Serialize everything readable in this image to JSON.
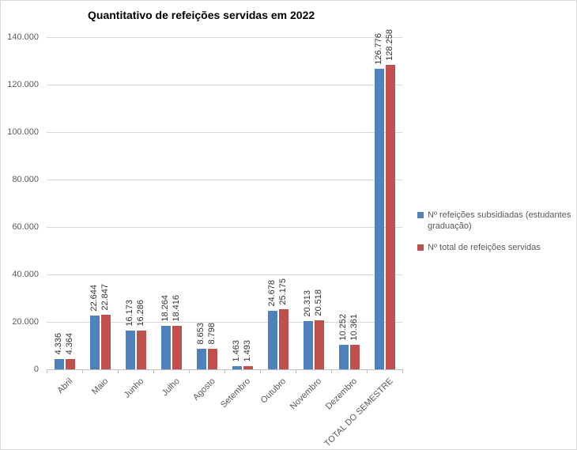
{
  "chart_data": {
    "type": "bar",
    "title": "Quantitativo de refeições servidas em 2022",
    "categories": [
      "Abril",
      "Maio",
      "Junho",
      "Julho",
      "Agosto",
      "Setembro",
      "Outubro",
      "Novembro",
      "Dezembro",
      "TOTAL DO SEMESTRE"
    ],
    "series": [
      {
        "name": "Nº refeições subsidiadas (estudantes graduação)",
        "color": "#4F81BD",
        "values": [
          4336,
          22644,
          16173,
          18264,
          8653,
          1463,
          24678,
          20313,
          10252,
          126776
        ]
      },
      {
        "name": "Nº total de refeições servidas",
        "color": "#C0504D",
        "values": [
          4364,
          22847,
          16286,
          18416,
          8798,
          1493,
          25175,
          20518,
          10361,
          128258
        ]
      }
    ],
    "data_labels": {
      "series_0": [
        "4.336",
        "22.644",
        "16.173",
        "18.264",
        "8.653",
        "1.463",
        "24.678",
        "20.313",
        "10.252",
        "126.776"
      ],
      "series_1": [
        "4.364",
        "22.847",
        "16.286",
        "18.416",
        "8.798",
        "1.493",
        "25.175",
        "20.518",
        "10.361",
        "128.258"
      ]
    },
    "ylim": [
      0,
      140000
    ],
    "ytick_step": 20000,
    "ytick_labels": [
      "0",
      "20.000",
      "40.000",
      "60.000",
      "80.000",
      "100.000",
      "120.000",
      "140.000"
    ],
    "grid": true,
    "legend_position": "right",
    "colors": {
      "gridline": "#d9d9d9",
      "axis": "#bfbfbf",
      "axis_text": "#595959",
      "value_label_text": "#333333",
      "title_text": "#000000"
    }
  }
}
